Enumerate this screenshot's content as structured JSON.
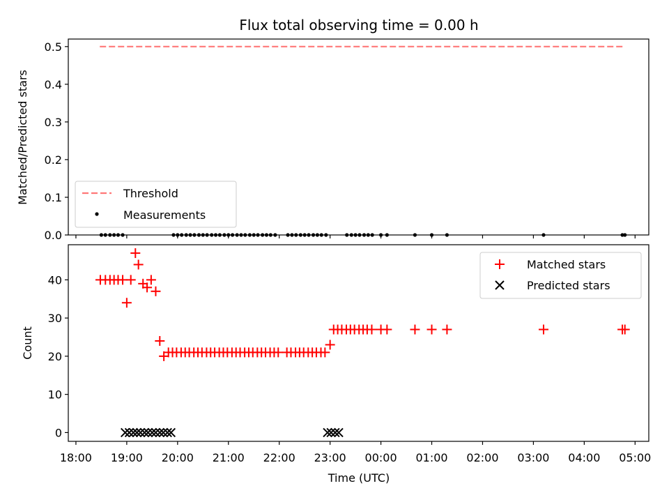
{
  "chart_data": [
    {
      "type": "scatter",
      "title": "Flux total observing time = 0.00 h",
      "xlabel": "",
      "ylabel": "Matched/Predicted stars",
      "ylim": [
        0,
        0.52
      ],
      "yticks": [
        "0.0",
        "0.1",
        "0.2",
        "0.3",
        "0.4",
        "0.5"
      ],
      "xlim_hours": [
        17.85,
        29.27
      ],
      "legend": {
        "placement": "lower-left",
        "entries": [
          "Threshold",
          "Measurements"
        ]
      },
      "series": [
        {
          "name": "Threshold",
          "kind": "dashed-line",
          "color": "#ff7777",
          "x": [
            18.47,
            28.78
          ],
          "y": [
            0.5,
            0.5
          ]
        },
        {
          "name": "Measurements",
          "kind": "dot",
          "color": "#000000",
          "x": [
            18.5,
            18.58,
            18.67,
            18.75,
            18.83,
            18.92,
            19.92,
            20.0,
            20.08,
            20.17,
            20.25,
            20.33,
            20.42,
            20.5,
            20.58,
            20.67,
            20.75,
            20.83,
            20.92,
            21.0,
            21.08,
            21.17,
            21.25,
            21.33,
            21.42,
            21.5,
            21.58,
            21.67,
            21.75,
            21.83,
            21.92,
            22.17,
            22.25,
            22.33,
            22.42,
            22.5,
            22.58,
            22.67,
            22.75,
            22.83,
            22.92,
            23.33,
            23.42,
            23.5,
            23.58,
            23.67,
            23.75,
            23.83,
            24.0,
            24.12,
            24.67,
            25.0,
            25.3,
            27.2,
            28.75,
            28.8
          ],
          "y": [
            0,
            0,
            0,
            0,
            0,
            0,
            0,
            0,
            0,
            0,
            0,
            0,
            0,
            0,
            0,
            0,
            0,
            0,
            0,
            0,
            0,
            0,
            0,
            0,
            0,
            0,
            0,
            0,
            0,
            0,
            0,
            0,
            0,
            0,
            0,
            0,
            0,
            0,
            0,
            0,
            0,
            0,
            0,
            0,
            0,
            0,
            0,
            0,
            0,
            0,
            0,
            0,
            0,
            0,
            0,
            0
          ]
        }
      ]
    },
    {
      "type": "scatter",
      "title": "",
      "xlabel": "Time (UTC)",
      "ylabel": "Count",
      "ylim": [
        -2.3,
        49.2
      ],
      "yticks": [
        "0",
        "10",
        "20",
        "30",
        "40"
      ],
      "xticks": [
        "18:00",
        "19:00",
        "20:00",
        "21:00",
        "22:00",
        "23:00",
        "00:00",
        "01:00",
        "02:00",
        "03:00",
        "04:00",
        "05:00"
      ],
      "xlim_hours": [
        17.85,
        29.27
      ],
      "legend": {
        "placement": "upper-right",
        "entries": [
          "Matched stars",
          "Predicted stars"
        ]
      },
      "series": [
        {
          "name": "Matched stars",
          "marker": "plus",
          "color": "#ff0000",
          "x": [
            18.48,
            18.58,
            18.67,
            18.75,
            18.83,
            18.92,
            19.0,
            19.08,
            19.17,
            19.23,
            19.32,
            19.4,
            19.48,
            19.57,
            19.65,
            19.73,
            19.82,
            19.9,
            19.98,
            20.07,
            20.15,
            20.23,
            20.32,
            20.4,
            20.48,
            20.57,
            20.65,
            20.73,
            20.82,
            20.9,
            20.98,
            21.07,
            21.15,
            21.23,
            21.32,
            21.4,
            21.48,
            21.57,
            21.65,
            21.73,
            21.82,
            21.9,
            21.98,
            22.15,
            22.23,
            22.32,
            22.4,
            22.48,
            22.57,
            22.65,
            22.73,
            22.82,
            22.9,
            23.0,
            23.07,
            23.15,
            23.23,
            23.32,
            23.4,
            23.48,
            23.57,
            23.65,
            23.73,
            23.82,
            24.0,
            24.12,
            24.67,
            25.0,
            25.3,
            27.2,
            28.75,
            28.8
          ],
          "y": [
            40,
            40,
            40,
            40,
            40,
            40,
            34,
            40,
            47,
            44,
            39,
            38,
            40,
            37,
            24,
            20,
            21,
            21,
            21,
            21,
            21,
            21,
            21,
            21,
            21,
            21,
            21,
            21,
            21,
            21,
            21,
            21,
            21,
            21,
            21,
            21,
            21,
            21,
            21,
            21,
            21,
            21,
            21,
            21,
            21,
            21,
            21,
            21,
            21,
            21,
            21,
            21,
            21,
            23,
            27,
            27,
            27,
            27,
            27,
            27,
            27,
            27,
            27,
            27,
            27,
            27,
            27,
            27,
            27,
            27,
            27,
            27
          ]
        },
        {
          "name": "Predicted stars",
          "marker": "x",
          "color": "#000000",
          "x": [
            18.97,
            19.05,
            19.13,
            19.2,
            19.27,
            19.35,
            19.42,
            19.5,
            19.57,
            19.65,
            19.72,
            19.8,
            19.87,
            22.95,
            23.02,
            23.1,
            23.17
          ],
          "y": [
            0,
            0,
            0,
            0,
            0,
            0,
            0,
            0,
            0,
            0,
            0,
            0,
            0,
            0,
            0,
            0,
            0
          ]
        }
      ]
    }
  ]
}
